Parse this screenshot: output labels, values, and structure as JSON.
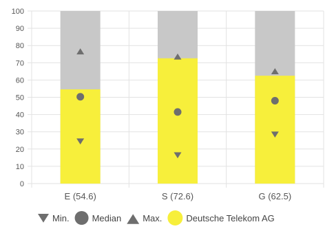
{
  "chart_data": {
    "type": "bar",
    "title": "",
    "xlabel": "",
    "ylabel": "",
    "ylim": [
      0,
      100
    ],
    "yticks": [
      0,
      10,
      20,
      30,
      40,
      50,
      60,
      70,
      80,
      90,
      100
    ],
    "grid": true,
    "categories": [
      "E (54.6)",
      "S (72.6)",
      "G (62.5)"
    ],
    "series": [
      {
        "name": "Deutsche Telekom AG",
        "values": [
          54.6,
          72.6,
          62.5
        ]
      }
    ],
    "background_max": 100,
    "markers": [
      {
        "name": "Min.",
        "values": [
          24.5,
          16.5,
          28.5
        ]
      },
      {
        "name": "Median",
        "values": [
          50.3,
          41.5,
          48.0
        ]
      },
      {
        "name": "Max.",
        "values": [
          76.5,
          73.5,
          65.0
        ]
      }
    ],
    "legend": {
      "position": "bottom",
      "items": [
        {
          "label": "Min.",
          "icon": "triangle-down-icon"
        },
        {
          "label": "Median",
          "icon": "circle-icon"
        },
        {
          "label": "Max.",
          "icon": "triangle-up-icon"
        },
        {
          "label": "Deutsche Telekom AG",
          "icon": "yellow-circle-icon"
        }
      ]
    },
    "colors": {
      "bar": "#f7ef3b",
      "background_bar": "#c8c8c8",
      "marker": "#6e6e6e",
      "grid": "#e2e2e2",
      "axis_text": "#555555",
      "legend_text": "#444444"
    }
  }
}
